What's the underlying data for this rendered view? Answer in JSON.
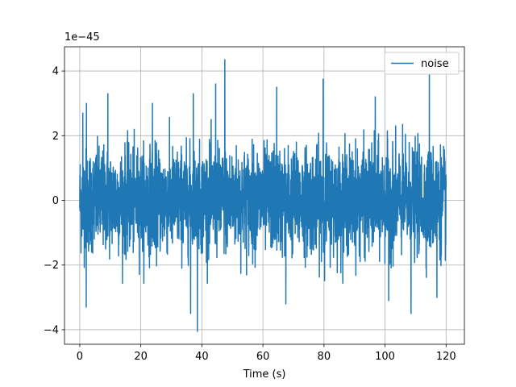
{
  "chart_data": {
    "type": "line",
    "title": "",
    "xlabel": "Time (s)",
    "ylabel": "",
    "y_offset_label": "1e−45",
    "y_scale_exponent": -45,
    "xlim": [
      -5,
      126
    ],
    "ylim": [
      -4.45,
      4.75
    ],
    "x_ticks": [
      0,
      20,
      40,
      60,
      80,
      100,
      120
    ],
    "x_tick_labels": [
      "0",
      "20",
      "40",
      "60",
      "80",
      "100",
      "120"
    ],
    "y_ticks": [
      -4,
      -2,
      0,
      2,
      4
    ],
    "y_tick_labels": [
      "−4",
      "−2",
      "0",
      "2",
      "4"
    ],
    "grid": true,
    "legend_position": "upper-right",
    "series": [
      {
        "name": "noise",
        "color": "#1f77b4",
        "x_range": [
          0,
          120
        ],
        "envelope_max": 4.35,
        "envelope_min": -4.05,
        "typical_abs": 1.9,
        "notable_peaks": [
          {
            "x": 1.0,
            "y": 2.7
          },
          {
            "x": 2.2,
            "y": 3.0
          },
          {
            "x": 9.2,
            "y": 3.3
          },
          {
            "x": 23.8,
            "y": 3.0
          },
          {
            "x": 37.2,
            "y": 3.3
          },
          {
            "x": 44.5,
            "y": 3.6
          },
          {
            "x": 47.5,
            "y": 4.35
          },
          {
            "x": 64.5,
            "y": 3.5
          },
          {
            "x": 79.7,
            "y": 3.75
          },
          {
            "x": 96.8,
            "y": 3.2
          },
          {
            "x": 114.5,
            "y": 3.9
          }
        ],
        "notable_troughs": [
          {
            "x": 2.1,
            "y": -3.3
          },
          {
            "x": 36.3,
            "y": -3.5
          },
          {
            "x": 38.5,
            "y": -4.05
          },
          {
            "x": 67.5,
            "y": -3.2
          },
          {
            "x": 101.2,
            "y": -3.1
          },
          {
            "x": 108.5,
            "y": -3.5
          },
          {
            "x": 117.0,
            "y": -3.0
          }
        ]
      }
    ]
  }
}
